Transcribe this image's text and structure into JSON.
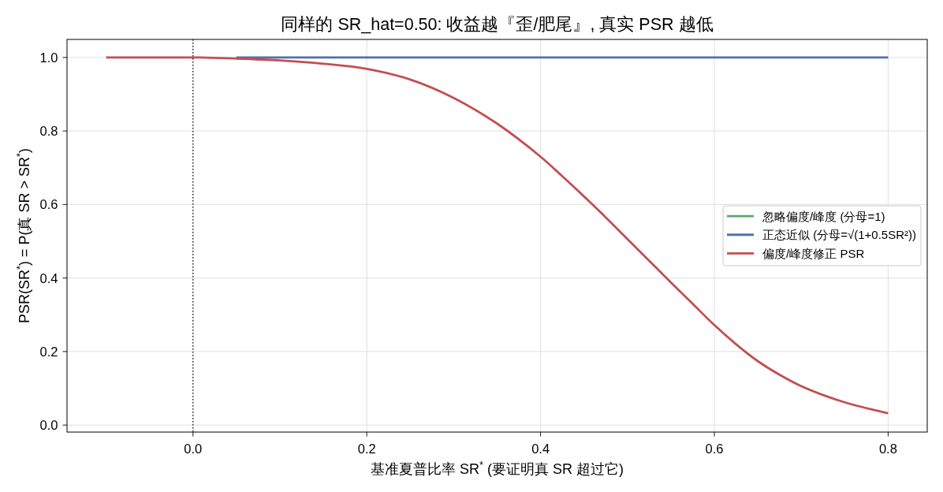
{
  "chart_data": {
    "type": "line",
    "title": "同样的 SR_hat=0.50: 收益越『歪/肥尾』, 真实 PSR 越低",
    "xlabel": "基准夏普比率 SR$^{*}$ (要证明真 SR 超过它)",
    "ylabel": "PSR(SR$^{*}$) = P(真 SR > SR$^{*}$)",
    "x": [
      -0.1,
      -0.05,
      0,
      0.05,
      0.1,
      0.15,
      0.2,
      0.25,
      0.3,
      0.35,
      0.4,
      0.425,
      0.45,
      0.475,
      0.5,
      0.525,
      0.55,
      0.575,
      0.6,
      0.625,
      0.65,
      0.675,
      0.7,
      0.75,
      0.8
    ],
    "series": [
      {
        "name": "忽略偏度/峰度 (分母=1)",
        "color": "#55a868",
        "values": [
          null,
          null,
          null,
          null,
          null,
          null,
          null,
          null,
          null,
          null,
          null,
          null,
          null,
          null,
          null,
          null,
          null,
          null,
          null,
          null,
          null,
          null,
          null,
          null,
          null
        ]
      },
      {
        "name": "正态近似 (分母=√(1+0.5SR²))",
        "color": "#4c72b0",
        "values": [
          null,
          null,
          null,
          1,
          1,
          1,
          1,
          1,
          1,
          1,
          1,
          1,
          1,
          1,
          1,
          1,
          1,
          1,
          1,
          1,
          1,
          1,
          1,
          1,
          1
        ]
      },
      {
        "name": "偏度/峰度修正 PSR",
        "color": "#c44e52",
        "values": [
          1,
          1,
          1,
          0.997,
          0.992,
          0.983,
          0.969,
          0.94,
          0.89,
          0.82,
          0.73,
          0.677,
          0.622,
          0.565,
          0.506,
          0.447,
          0.388,
          0.33,
          0.272,
          0.22,
          0.174,
          0.137,
          0.106,
          0.062,
          0.032
        ]
      }
    ],
    "xlim": [
      -0.145,
      0.845
    ],
    "ylim": [
      -0.019,
      1.049
    ],
    "xticks": [
      {
        "value": 0,
        "label": "0.0"
      },
      0.2,
      0.4,
      0.6,
      0.8
    ],
    "yticks": [
      {
        "value": 0,
        "label": "0.0"
      },
      0.2,
      0.4,
      0.6,
      0.8,
      {
        "value": 1,
        "label": "1.0"
      }
    ],
    "grid": true,
    "legend": "right",
    "ref_lines": [
      {
        "axis": "x",
        "value": 0,
        "color": "#000000",
        "line_style": "dotted"
      }
    ]
  }
}
